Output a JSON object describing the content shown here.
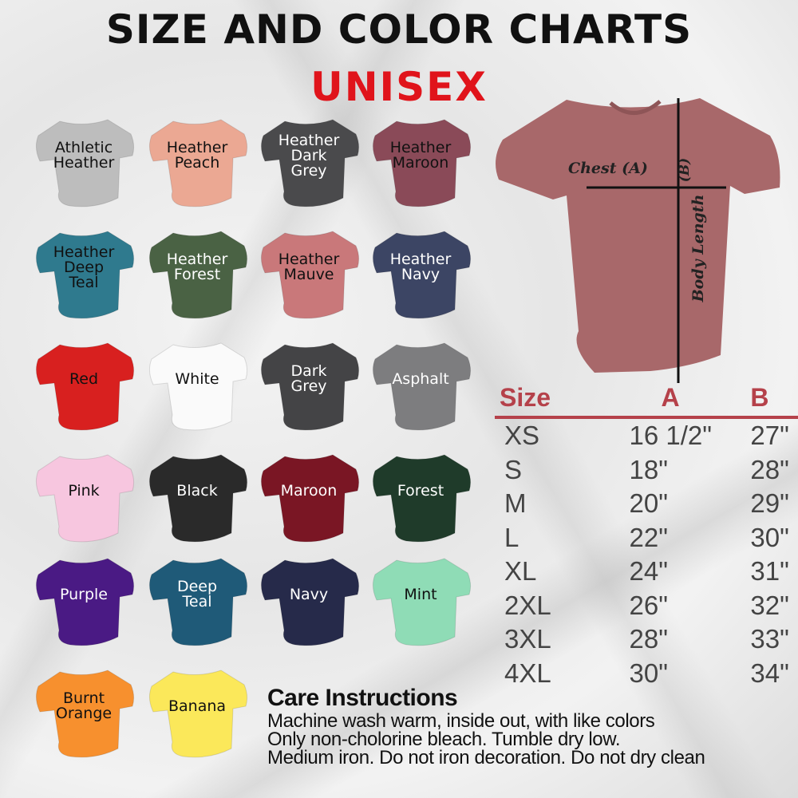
{
  "header": {
    "title": "SIZE AND COLOR CHARTS",
    "subtitle": "UNISEX"
  },
  "colors": [
    {
      "name": [
        "Athletic",
        "Heather"
      ],
      "color": "#bdbdbd",
      "text": "#111"
    },
    {
      "name": [
        "Heather",
        "Peach"
      ],
      "color": "#eba893",
      "text": "#111"
    },
    {
      "name": [
        "Heather",
        "Dark",
        "Grey"
      ],
      "color": "#4a4a4c",
      "text": "#fff"
    },
    {
      "name": [
        "Heather",
        "Maroon"
      ],
      "color": "#8a4a58",
      "text": "#111"
    },
    {
      "name": [
        "Heather",
        "Deep",
        "Teal"
      ],
      "color": "#2f7a8e",
      "text": "#111"
    },
    {
      "name": [
        "Heather",
        "Forest"
      ],
      "color": "#4a6244",
      "text": "#fff"
    },
    {
      "name": [
        "Heather",
        "Mauve"
      ],
      "color": "#c9787a",
      "text": "#111"
    },
    {
      "name": [
        "Heather",
        "Navy"
      ],
      "color": "#3c4564",
      "text": "#fff"
    },
    {
      "name": [
        "Red"
      ],
      "color": "#d8201f",
      "text": "#111"
    },
    {
      "name": [
        "White"
      ],
      "color": "#fafafa",
      "text": "#111"
    },
    {
      "name": [
        "Dark",
        "Grey"
      ],
      "color": "#444446",
      "text": "#fff"
    },
    {
      "name": [
        "Asphalt"
      ],
      "color": "#7d7d7f",
      "text": "#fff"
    },
    {
      "name": [
        "Pink"
      ],
      "color": "#f7c6df",
      "text": "#111"
    },
    {
      "name": [
        "Black"
      ],
      "color": "#2a2a2a",
      "text": "#fff"
    },
    {
      "name": [
        "Maroon"
      ],
      "color": "#7a1624",
      "text": "#fff"
    },
    {
      "name": [
        "Forest"
      ],
      "color": "#1f3b2a",
      "text": "#fff"
    },
    {
      "name": [
        "Purple"
      ],
      "color": "#4a1a84",
      "text": "#fff"
    },
    {
      "name": [
        "Deep",
        "Teal"
      ],
      "color": "#1f5a78",
      "text": "#fff"
    },
    {
      "name": [
        "Navy"
      ],
      "color": "#262a4a",
      "text": "#fff"
    },
    {
      "name": [
        "Mint"
      ],
      "color": "#8fdcb6",
      "text": "#111"
    },
    {
      "name": [
        "Burnt",
        "Orange"
      ],
      "color": "#f7902e",
      "text": "#111"
    },
    {
      "name": [
        "Banana"
      ],
      "color": "#fbe85a",
      "text": "#111"
    }
  ],
  "diagram": {
    "chest_label": "Chest (A)",
    "length_label": "Body Length",
    "length_letter": "(B)",
    "shirt_color": "#a8686a"
  },
  "size_table": {
    "headers": [
      "Size",
      "A",
      "B"
    ],
    "rows": [
      [
        "XS",
        "16 1/2\"",
        "27\""
      ],
      [
        "S",
        "18\"",
        "28\""
      ],
      [
        "M",
        "20\"",
        "29\""
      ],
      [
        "L",
        "22\"",
        "30\""
      ],
      [
        "XL",
        "24\"",
        "31\""
      ],
      [
        "2XL",
        "26\"",
        "32\""
      ],
      [
        "3XL",
        "28\"",
        "33\""
      ],
      [
        "4XL",
        "30\"",
        "34\""
      ]
    ],
    "accent": "#b5414a"
  },
  "care": {
    "title": "Care Instructions",
    "lines": [
      "Machine wash warm, inside out, with like colors",
      "Only non-cholorine bleach. Tumble dry low.",
      "Medium iron. Do not iron decoration. Do not dry clean"
    ]
  }
}
